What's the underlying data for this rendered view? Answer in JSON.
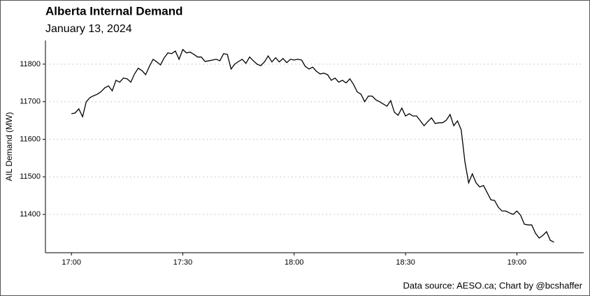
{
  "chart_data": {
    "type": "line",
    "title": "Alberta Internal Demand",
    "subtitle": "January 13, 2024",
    "y_label": "AIL Demand (MW)",
    "caption": "Data source: AESO.ca; Chart by @bcshaffer",
    "x": [
      "17:00",
      "17:01",
      "17:02",
      "17:03",
      "17:04",
      "17:05",
      "17:06",
      "17:07",
      "17:08",
      "17:09",
      "17:10",
      "17:11",
      "17:12",
      "17:13",
      "17:14",
      "17:15",
      "17:16",
      "17:17",
      "17:18",
      "17:19",
      "17:20",
      "17:21",
      "17:22",
      "17:23",
      "17:24",
      "17:25",
      "17:26",
      "17:27",
      "17:28",
      "17:29",
      "17:30",
      "17:31",
      "17:32",
      "17:33",
      "17:34",
      "17:35",
      "17:36",
      "17:37",
      "17:38",
      "17:39",
      "17:40",
      "17:41",
      "17:42",
      "17:43",
      "17:44",
      "17:45",
      "17:46",
      "17:47",
      "17:48",
      "17:49",
      "17:50",
      "17:51",
      "17:52",
      "17:53",
      "17:54",
      "17:55",
      "17:56",
      "17:57",
      "17:58",
      "17:59",
      "18:00",
      "18:01",
      "18:02",
      "18:03",
      "18:04",
      "18:05",
      "18:06",
      "18:07",
      "18:08",
      "18:09",
      "18:10",
      "18:11",
      "18:12",
      "18:13",
      "18:14",
      "18:15",
      "18:16",
      "18:17",
      "18:18",
      "18:19",
      "18:20",
      "18:21",
      "18:22",
      "18:23",
      "18:24",
      "18:25",
      "18:26",
      "18:27",
      "18:28",
      "18:29",
      "18:30",
      "18:31",
      "18:32",
      "18:33",
      "18:34",
      "18:35",
      "18:36",
      "18:37",
      "18:38",
      "18:39",
      "18:40",
      "18:41",
      "18:42",
      "18:43",
      "18:44",
      "18:45",
      "18:46",
      "18:47",
      "18:48",
      "18:49",
      "18:50",
      "18:51",
      "18:52",
      "18:53",
      "18:54",
      "18:55",
      "18:56",
      "18:57",
      "18:58",
      "18:59",
      "19:00",
      "19:01",
      "19:02",
      "19:03",
      "19:04",
      "19:05",
      "19:06",
      "19:07",
      "19:08",
      "19:09",
      "19:10"
    ],
    "series": [
      {
        "name": "AIL Demand",
        "color": "#000000",
        "values": [
          11668,
          11670,
          11681,
          11660,
          11700,
          11711,
          11716,
          11720,
          11727,
          11737,
          11742,
          11729,
          11757,
          11752,
          11763,
          11761,
          11752,
          11774,
          11789,
          11783,
          11772,
          11794,
          11813,
          11806,
          11798,
          11817,
          11830,
          11828,
          11835,
          11813,
          11839,
          11830,
          11832,
          11826,
          11819,
          11819,
          11807,
          11809,
          11811,
          11813,
          11809,
          11828,
          11826,
          11787,
          11800,
          11807,
          11813,
          11802,
          11819,
          11809,
          11800,
          11796,
          11806,
          11822,
          11806,
          11817,
          11806,
          11815,
          11804,
          11813,
          11811,
          11813,
          11811,
          11794,
          11787,
          11792,
          11781,
          11774,
          11776,
          11772,
          11757,
          11763,
          11752,
          11757,
          11750,
          11761,
          11746,
          11726,
          11720,
          11700,
          11715,
          11715,
          11705,
          11700,
          11694,
          11688,
          11703,
          11672,
          11664,
          11683,
          11662,
          11668,
          11662,
          11662,
          11649,
          11636,
          11647,
          11657,
          11642,
          11644,
          11644,
          11651,
          11666,
          11636,
          11649,
          11625,
          11540,
          11484,
          11508,
          11484,
          11473,
          11477,
          11458,
          11439,
          11437,
          11419,
          11409,
          11409,
          11404,
          11400,
          11409,
          11398,
          11374,
          11372,
          11372,
          11350,
          11337,
          11344,
          11354,
          11331,
          11326
        ]
      }
    ],
    "xlim": [
      "16:53",
      "19:18"
    ],
    "xticks": [
      "17:00",
      "17:30",
      "18:00",
      "18:30",
      "19:00"
    ],
    "ylim": [
      11298,
      11863
    ],
    "yticks": [
      11400,
      11500,
      11600,
      11700,
      11800
    ],
    "grid": true
  }
}
